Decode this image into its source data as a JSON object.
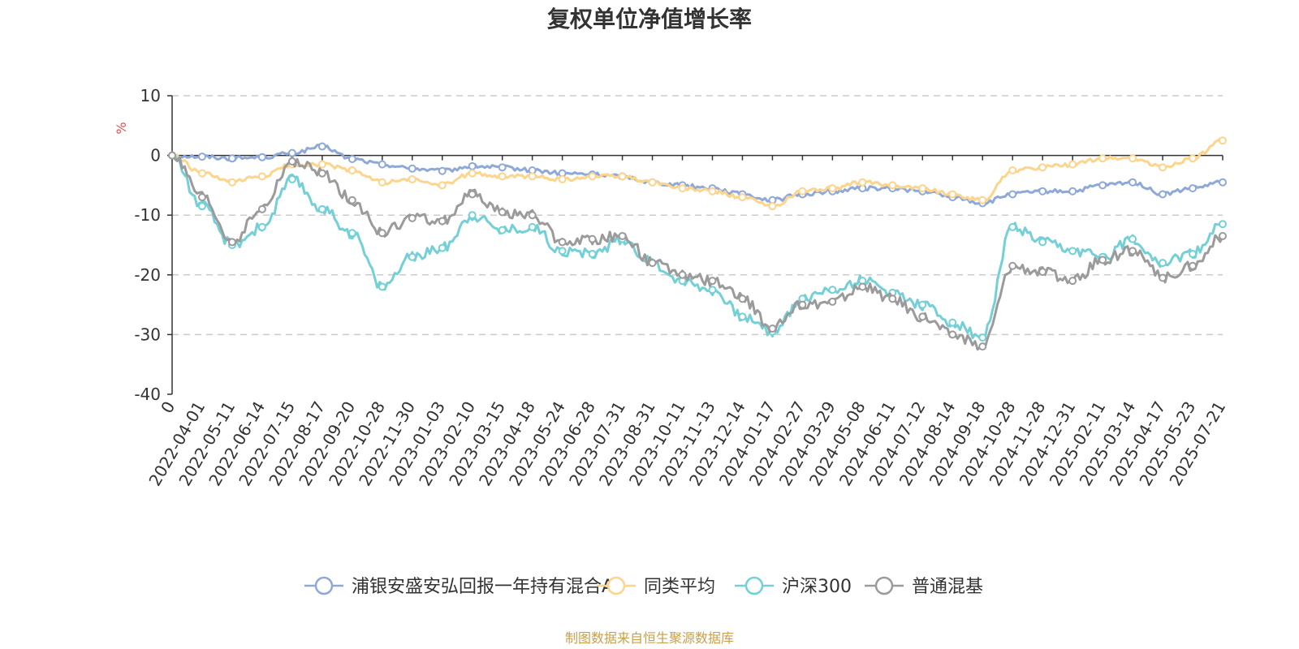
{
  "chart_data": {
    "type": "line",
    "title": "复权单位净值增长率",
    "ylabel": "%",
    "ylim": [
      -40,
      10
    ],
    "yticks": [
      10,
      0,
      -10,
      -20,
      -30,
      -40
    ],
    "grid": true,
    "legend_position": "bottom",
    "x_tick_labels": [
      "0",
      "2022-04-01",
      "2022-05-11",
      "2022-06-14",
      "2022-07-15",
      "2022-08-17",
      "2022-09-20",
      "2022-10-28",
      "2022-11-30",
      "2023-01-03",
      "2023-02-10",
      "2023-03-15",
      "2023-04-18",
      "2023-05-24",
      "2023-06-28",
      "2023-07-31",
      "2023-08-31",
      "2023-10-11",
      "2023-11-13",
      "2023-12-14",
      "2024-01-17",
      "2024-02-27",
      "2024-03-29",
      "2024-05-08",
      "2024-06-11",
      "2024-07-12",
      "2024-08-14",
      "2024-09-18",
      "2024-10-28",
      "2024-11-28",
      "2024-12-31",
      "2025-02-11",
      "2025-03-14",
      "2025-04-17",
      "2025-05-23",
      "2025-07-21"
    ],
    "series": [
      {
        "name": "浦银安盛安弘回报一年持有混合A",
        "color": "#8ea9d9",
        "values": [
          0,
          -0.2,
          -0.5,
          -0.3,
          0.4,
          1.5,
          -0.6,
          -1.5,
          -2.2,
          -2.6,
          -1.8,
          -2.0,
          -2.5,
          -3.0,
          -3.2,
          -3.5,
          -4.5,
          -5.0,
          -5.5,
          -6.5,
          -7.5,
          -6.5,
          -6.0,
          -5.5,
          -5.5,
          -6.0,
          -7.0,
          -8.0,
          -6.5,
          -6.0,
          -6.0,
          -5.0,
          -4.5,
          -6.5,
          -5.5,
          -4.5
        ]
      },
      {
        "name": "同类平均",
        "color": "#fdd48b",
        "values": [
          0,
          -3.0,
          -4.5,
          -3.5,
          -1.5,
          -1.5,
          -2.5,
          -4.5,
          -4.0,
          -5.0,
          -3.0,
          -3.5,
          -3.5,
          -4.0,
          -3.5,
          -3.5,
          -4.5,
          -5.5,
          -6.0,
          -7.0,
          -8.5,
          -6.0,
          -5.5,
          -4.5,
          -5.0,
          -5.5,
          -6.5,
          -7.5,
          -2.5,
          -2.0,
          -1.5,
          -0.5,
          -0.5,
          -2.0,
          -0.5,
          2.5
        ]
      },
      {
        "name": "沪深300",
        "color": "#73d0d6",
        "values": [
          0,
          -8.5,
          -15.0,
          -12.0,
          -4.0,
          -9.0,
          -13.0,
          -22.0,
          -17.0,
          -15.5,
          -10.0,
          -12.5,
          -12.0,
          -16.0,
          -16.5,
          -14.0,
          -18.0,
          -21.0,
          -22.5,
          -27.0,
          -29.5,
          -24.0,
          -22.5,
          -21.0,
          -23.0,
          -25.0,
          -28.0,
          -30.5,
          -12.0,
          -14.5,
          -16.0,
          -17.0,
          -14.0,
          -18.0,
          -16.5,
          -11.5
        ]
      },
      {
        "name": "普通混基",
        "color": "#9b9b9b",
        "values": [
          0,
          -7.0,
          -14.5,
          -9.0,
          -1.0,
          -3.0,
          -7.5,
          -13.0,
          -10.5,
          -11.0,
          -6.5,
          -9.5,
          -10.0,
          -14.5,
          -14.0,
          -13.5,
          -18.0,
          -20.0,
          -21.0,
          -24.0,
          -29.0,
          -25.0,
          -24.5,
          -22.0,
          -24.0,
          -27.0,
          -30.0,
          -32.0,
          -18.5,
          -19.5,
          -21.0,
          -17.5,
          -16.0,
          -20.5,
          -18.5,
          -13.5
        ]
      }
    ]
  },
  "footer": {
    "source": "制图数据来自恒生聚源数据库",
    "source_color": "#c8a04a"
  },
  "unit_color": "#e05050"
}
